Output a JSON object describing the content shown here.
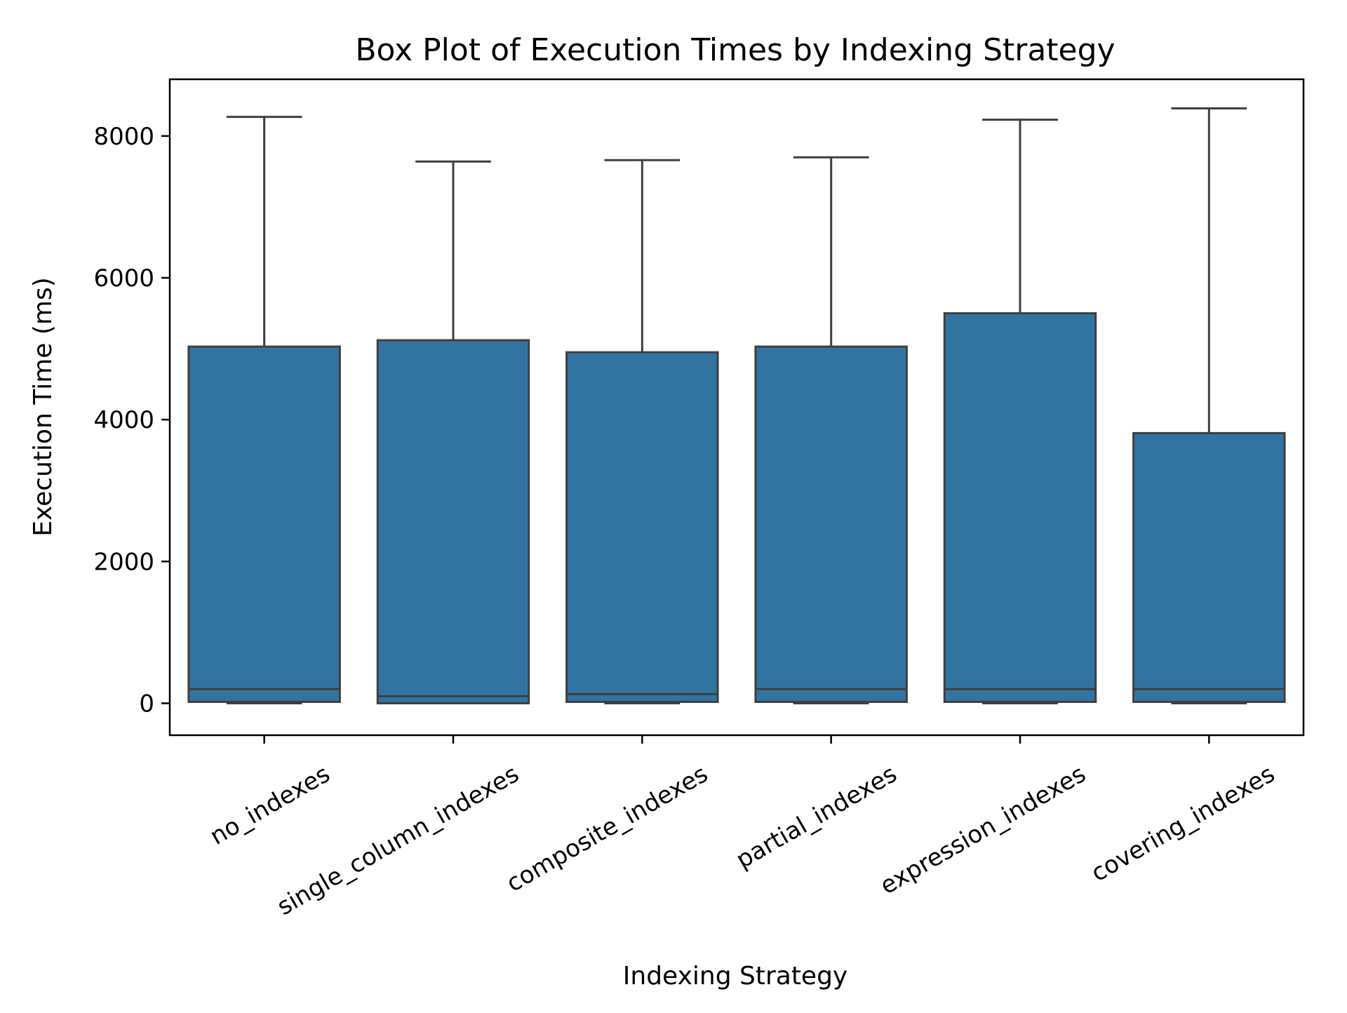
{
  "chart_data": {
    "type": "box",
    "title": "Box Plot of Execution Times by Indexing Strategy",
    "xlabel": "Indexing Strategy",
    "ylabel": "Execution Time (ms)",
    "ylim": [
      -450,
      8800
    ],
    "yticks": [
      0,
      2000,
      4000,
      6000,
      8000
    ],
    "ytick_labels": [
      "0",
      "2000",
      "4000",
      "6000",
      "8000"
    ],
    "grid": false,
    "legend": "none",
    "box_color": "#3274a1",
    "line_color": "#3f3f3f",
    "categories": [
      "no_indexes",
      "single_column_indexes",
      "composite_indexes",
      "partial_indexes",
      "expression_indexes",
      "covering_indexes"
    ],
    "boxes": [
      {
        "whisker_low": 0,
        "q1": 20,
        "median": 200,
        "q3": 5030,
        "whisker_high": 8270
      },
      {
        "whisker_low": 0,
        "q1": 0,
        "median": 100,
        "q3": 5120,
        "whisker_high": 7640
      },
      {
        "whisker_low": 0,
        "q1": 20,
        "median": 130,
        "q3": 4950,
        "whisker_high": 7660
      },
      {
        "whisker_low": 0,
        "q1": 20,
        "median": 200,
        "q3": 5030,
        "whisker_high": 7700
      },
      {
        "whisker_low": 0,
        "q1": 20,
        "median": 200,
        "q3": 5500,
        "whisker_high": 8230
      },
      {
        "whisker_low": 0,
        "q1": 20,
        "median": 200,
        "q3": 3810,
        "whisker_high": 8390
      }
    ]
  }
}
